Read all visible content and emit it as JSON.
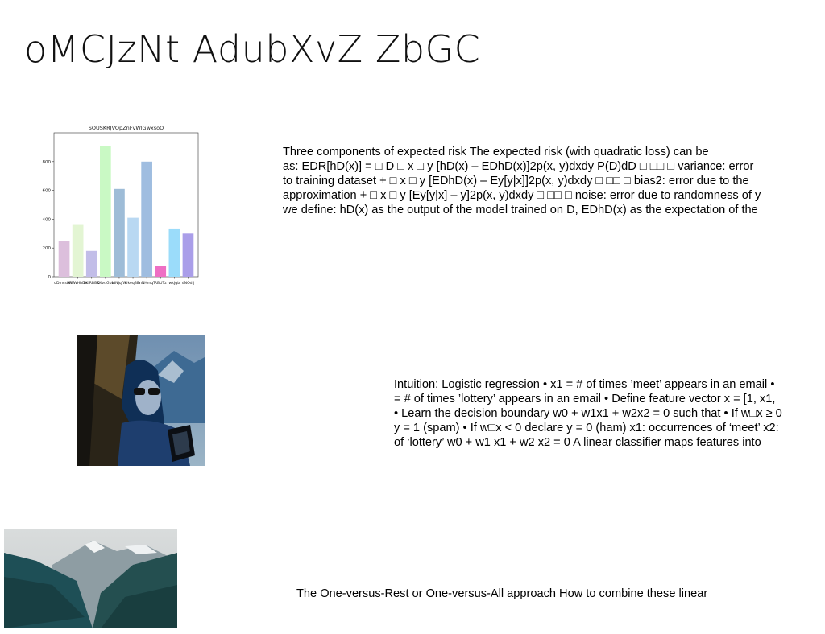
{
  "slide": {
    "title": "oMCJzNt AdubXvZ ZbGC"
  },
  "chart_data": {
    "type": "bar",
    "title": "SOUSKRJVOpZnFvWlGwxsoO",
    "categories": [
      "oDmcsbRlf",
      "WtWHhDe",
      "FKIRBBD",
      "KXvdGbb",
      "IdNJqfW",
      "UkeqBBr",
      "mNHmqT",
      "RBUTz",
      "wkJgb",
      "dNOdij"
    ],
    "values": [
      250,
      360,
      180,
      910,
      610,
      410,
      800,
      75,
      330,
      300
    ],
    "colors": [
      "#dcbfdc",
      "#e3f5d3",
      "#c2bde8",
      "#c9f9c4",
      "#9ebcd7",
      "#b9d8f2",
      "#9fbde0",
      "#ee6fc4",
      "#9bdcfa",
      "#aa9ee9"
    ],
    "ylim": [
      0,
      1000
    ],
    "yticks": [
      0,
      200,
      400,
      600,
      800
    ],
    "xlabel": "",
    "ylabel": ""
  },
  "text_blocks": {
    "risk": [
      "Three components of expected risk The expected risk (with quadratic loss) can be",
      "as: EDR[hD(x)] = □ D □ x □ y [hD(x) – EDhD(x)]2p(x, y)dxdy P(D)dD □ □□ □ variance: error",
      "to training dataset + □ x □ y [EDhD(x) – Ey[y|x]]2p(x, y)dxdy □ □□ □ bias2: error due to the",
      "approximation + □ x □ y [Ey[y|x] – y]2p(x, y)dxdy □ □□ □ noise: error due to randomness of y",
      "we define: hD(x) as the output of the model trained on D, EDhD(x) as the expectation of the"
    ],
    "logistic": [
      "Intuition: Logistic regression • x1 = # of times ’meet’ appears in an email •",
      "= # of times ’lottery’ appears in an email • Define feature vector x = [1, x1,",
      "• Learn the decision boundary w0 + w1x1 + w2x2 = 0 such that • If w□x ≥ 0",
      "y = 1 (spam) • If w□x < 0 declare y = 0 (ham) x1: occurrences of ‘meet’ x2:",
      "of ‘lottery’ w0 + w1 x1 + w2 x2 = 0 A linear classifier maps features into"
    ],
    "ovr": "The One-versus-Rest or One-versus-All approach How to combine these linear"
  }
}
